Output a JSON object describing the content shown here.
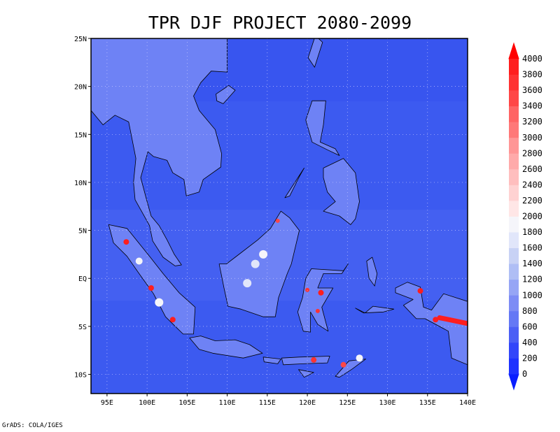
{
  "title": "TPR DJF PROJECT 2080-2099",
  "credit": "GrADS: COLA/IGES",
  "map": {
    "lon_range": [
      93,
      140
    ],
    "lat_range": [
      -12,
      25
    ],
    "lon_ticks": [
      {
        "value": 95,
        "label": "95E"
      },
      {
        "value": 100,
        "label": "100E"
      },
      {
        "value": 105,
        "label": "105E"
      },
      {
        "value": 110,
        "label": "110E"
      },
      {
        "value": 115,
        "label": "115E"
      },
      {
        "value": 120,
        "label": "120E"
      },
      {
        "value": 125,
        "label": "125E"
      },
      {
        "value": 130,
        "label": "130E"
      },
      {
        "value": 135,
        "label": "135E"
      },
      {
        "value": 140,
        "label": "140E"
      }
    ],
    "lat_ticks": [
      {
        "value": 25,
        "label": "25N"
      },
      {
        "value": 20,
        "label": "20N"
      },
      {
        "value": 15,
        "label": "15N"
      },
      {
        "value": 10,
        "label": "10N"
      },
      {
        "value": 5,
        "label": "5N"
      },
      {
        "value": 0,
        "label": "EQ"
      },
      {
        "value": -5,
        "label": "5S"
      },
      {
        "value": -10,
        "label": "10S"
      }
    ],
    "grid": true,
    "ocean_color": "#3c5af0",
    "land_color": "#6e82f5"
  },
  "colorbar": {
    "levels": [
      "0",
      "200",
      "400",
      "600",
      "800",
      "1000",
      "1200",
      "1400",
      "1600",
      "1800",
      "2000",
      "2200",
      "2400",
      "2600",
      "2800",
      "3000",
      "3200",
      "3400",
      "3600",
      "3800",
      "4000"
    ],
    "colors": [
      "#1e32ff",
      "#3246fa",
      "#4b5ff5",
      "#6478f5",
      "#7d8cf5",
      "#96a5f5",
      "#afbef5",
      "#c8d2f5",
      "#e1e6fa",
      "#f5f5fa",
      "#ffe6e6",
      "#ffd2d2",
      "#ffbebe",
      "#ffaaaa",
      "#ff9696",
      "#ff7878",
      "#ff6464",
      "#ff4646",
      "#ff3232",
      "#ff1e1e"
    ],
    "arrow_low_color": "#0a1eff",
    "arrow_high_color": "#ff0000"
  }
}
